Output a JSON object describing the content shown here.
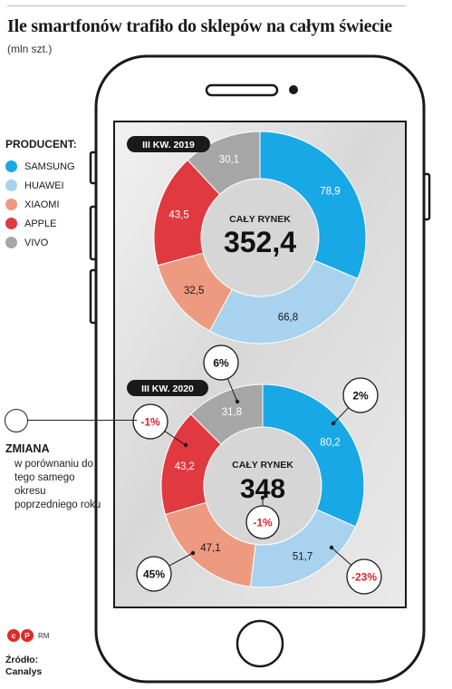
{
  "title": "Ile smartfonów trafiło do sklepów na całym świecie",
  "subtitle": "(mln szt.)",
  "legend": {
    "title": "PRODUCENT:",
    "items": [
      {
        "label": "SAMSUNG",
        "color": "#18a8e6"
      },
      {
        "label": "HUAWEI",
        "color": "#a8d2ee"
      },
      {
        "label": "XIAOMI",
        "color": "#ee9a80"
      },
      {
        "label": "APPLE",
        "color": "#e0393f"
      },
      {
        "label": "VIVO",
        "color": "#a6a6a6"
      }
    ]
  },
  "change_note": {
    "title": "ZMIANA",
    "text": "w porównaniu do tego samego okresu poprzedniego roku"
  },
  "logo": {
    "mark": "cP",
    "suffix": "RM"
  },
  "source": {
    "label": "Źródło:",
    "name": "Canalys"
  },
  "chart_data": [
    {
      "type": "pie",
      "period": "III KW. 2019",
      "center_label": "CAŁY RYNEK",
      "total": "352,4",
      "categories": [
        "SAMSUNG",
        "HUAWEI",
        "XIAOMI",
        "APPLE",
        "VIVO"
      ],
      "values": [
        78.9,
        66.8,
        32.5,
        43.5,
        30.1
      ],
      "labels": [
        "78,9",
        "66,8",
        "32,5",
        "43,5",
        "30,1"
      ],
      "colors": [
        "#18a8e6",
        "#a8d2ee",
        "#ee9a80",
        "#e0393f",
        "#a6a6a6"
      ]
    },
    {
      "type": "pie",
      "period": "III KW. 2020",
      "center_label": "CAŁY RYNEK",
      "total": "348",
      "total_change": "-1%",
      "categories": [
        "SAMSUNG",
        "HUAWEI",
        "XIAOMI",
        "APPLE",
        "VIVO"
      ],
      "values": [
        80.2,
        51.7,
        47.1,
        43.2,
        31.8
      ],
      "labels": [
        "80,2",
        "51,7",
        "47,1",
        "43,2",
        "31,8"
      ],
      "changes": [
        "2%",
        "-23%",
        "45%",
        "-1%",
        "6%"
      ],
      "colors": [
        "#18a8e6",
        "#a8d2ee",
        "#ee9a80",
        "#e0393f",
        "#a6a6a6"
      ]
    }
  ]
}
